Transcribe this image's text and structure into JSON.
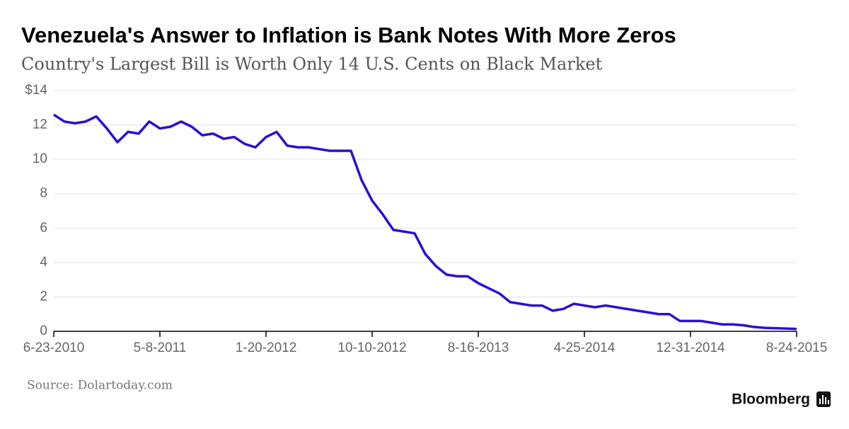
{
  "chart_data": {
    "type": "line",
    "title": "Venezuela's Answer to Inflation is Bank Notes With More Zeros",
    "subtitle": "Country's Largest Bill is Worth Only 14 U.S. Cents on Black Market",
    "source": "Source: Dolartoday.com",
    "brand": "Bloomberg",
    "categories": [
      "6-23-2010",
      null,
      null,
      null,
      null,
      null,
      null,
      null,
      null,
      null,
      "5-8-2011",
      null,
      null,
      null,
      null,
      null,
      null,
      null,
      null,
      null,
      "1-20-2012",
      null,
      null,
      null,
      null,
      null,
      null,
      null,
      null,
      null,
      "10-10-2012",
      null,
      null,
      null,
      null,
      null,
      null,
      null,
      null,
      null,
      "8-16-2013",
      null,
      null,
      null,
      null,
      null,
      null,
      null,
      null,
      null,
      "4-25-2014",
      null,
      null,
      null,
      null,
      null,
      null,
      null,
      null,
      null,
      "12-31-2014",
      null,
      null,
      null,
      null,
      null,
      null,
      null,
      null,
      null,
      "8-24-2015"
    ],
    "series": [
      {
        "color": "#2a0fd6",
        "values": [
          12.6,
          12.2,
          12.1,
          12.2,
          12.5,
          11.8,
          11.0,
          11.6,
          11.5,
          12.2,
          11.8,
          11.9,
          12.2,
          11.9,
          11.4,
          11.5,
          11.2,
          11.3,
          10.9,
          10.7,
          11.3,
          11.6,
          10.8,
          10.7,
          10.7,
          10.6,
          10.5,
          10.5,
          10.5,
          8.8,
          7.6,
          6.8,
          5.9,
          5.8,
          5.7,
          4.5,
          3.8,
          3.3,
          3.2,
          3.2,
          2.8,
          2.5,
          2.2,
          1.7,
          1.6,
          1.5,
          1.5,
          1.2,
          1.3,
          1.6,
          1.5,
          1.4,
          1.5,
          1.4,
          1.3,
          1.2,
          1.1,
          1.0,
          1.0,
          0.6,
          0.6,
          0.6,
          0.5,
          0.4,
          0.4,
          0.35,
          0.25,
          0.2,
          0.18,
          0.16,
          0.14
        ]
      }
    ],
    "ylim": [
      0,
      14
    ],
    "yticks": [
      0,
      2,
      4,
      6,
      8,
      10,
      12,
      {
        "value": 14,
        "label": "$14"
      }
    ],
    "grid": true
  }
}
